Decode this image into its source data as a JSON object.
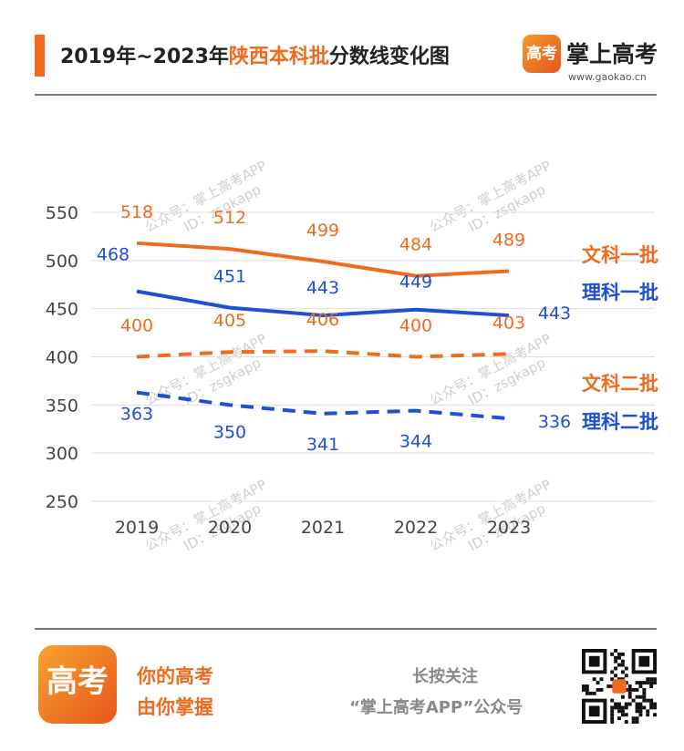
{
  "header": {
    "title_prefix": "2019年~2023年",
    "title_highlight": "陕西本科批",
    "title_suffix": "分数线变化图",
    "brand_name": "掌上高考",
    "brand_url": "www.gaokao.cn",
    "brand_logo_text": "高考"
  },
  "watermark": {
    "line1": "公众号：掌上高考APP",
    "line2": "ID：zsgkapp"
  },
  "colors": {
    "orange": "#ee6b1f",
    "blue": "#1f4fd6",
    "grid": "#dddddd",
    "axis_text": "#444444"
  },
  "chart_data": {
    "type": "line",
    "x": [
      "2019",
      "2020",
      "2021",
      "2022",
      "2023"
    ],
    "ylim": [
      250,
      550
    ],
    "yticks": [
      250,
      300,
      350,
      400,
      450,
      500,
      550
    ],
    "grid": true,
    "legend_placement": "right",
    "series": [
      {
        "name": "文科一批",
        "values": [
          518,
          512,
          499,
          484,
          489
        ],
        "color": "#ee6b1f",
        "dash": false
      },
      {
        "name": "理科一批",
        "values": [
          468,
          451,
          443,
          449,
          443
        ],
        "color": "#1f4fd6",
        "dash": false
      },
      {
        "name": "文科二批",
        "values": [
          400,
          405,
          406,
          400,
          403
        ],
        "color": "#ee6b1f",
        "dash": true
      },
      {
        "name": "理科二批",
        "values": [
          363,
          350,
          341,
          344,
          336
        ],
        "color": "#1f4fd6",
        "dash": true
      }
    ]
  },
  "footer": {
    "logo_text": "高考",
    "slogan_line1": "你的高考",
    "slogan_line2": "由你掌握",
    "follow_line1": "长按关注",
    "follow_line2": "“掌上高考APP”公众号"
  }
}
